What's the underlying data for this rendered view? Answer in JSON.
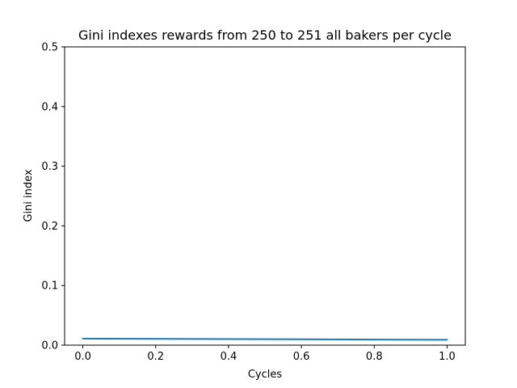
{
  "chart_data": {
    "type": "line",
    "title": "Gini indexes rewards from 250 to 251 all bakers per cycle",
    "xlabel": "Cycles",
    "ylabel": "Gini index",
    "xlim": [
      -0.05,
      1.05
    ],
    "ylim": [
      0,
      0.5
    ],
    "x_ticks": [
      0.0,
      0.2,
      0.4,
      0.6,
      0.8,
      1.0
    ],
    "x_tick_labels": [
      "0.0",
      "0.2",
      "0.4",
      "0.6",
      "0.8",
      "1.0"
    ],
    "y_ticks": [
      0.0,
      0.1,
      0.2,
      0.3,
      0.4,
      0.5
    ],
    "y_tick_labels": [
      "0.0",
      "0.1",
      "0.2",
      "0.3",
      "0.4",
      "0.5"
    ],
    "grid": false,
    "series": [
      {
        "color": "#1f77b4",
        "x": [
          0,
          1
        ],
        "y": [
          0.011,
          0.009
        ]
      }
    ]
  }
}
